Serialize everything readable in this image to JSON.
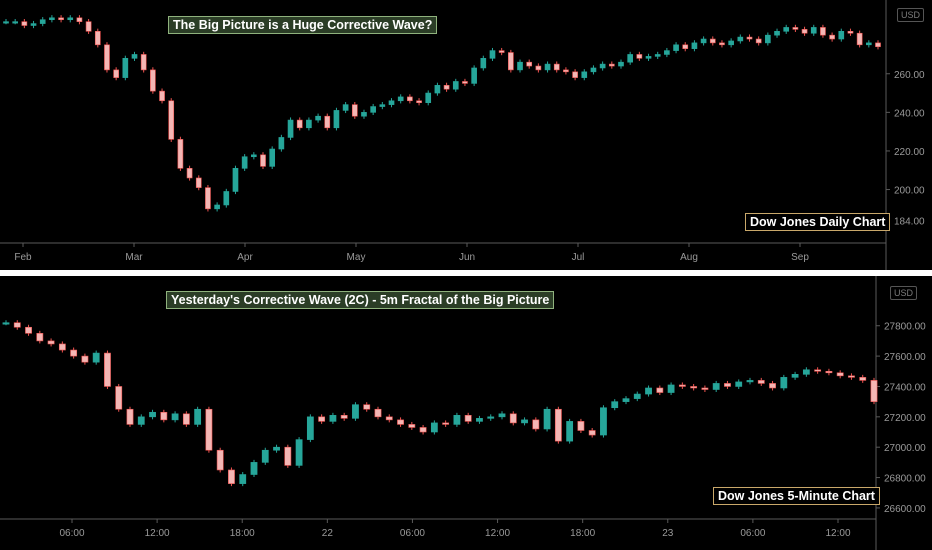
{
  "charts": {
    "top": {
      "banner": "The Big Picture is a Huge Corrective Wave?",
      "label": "Dow Jones Daily Chart",
      "currency": "USD"
    },
    "bottom": {
      "banner": "Yesterday's Corrective Wave (2C) - 5m Fractal of the Big Picture",
      "label": "Dow Jones 5-Minute Chart",
      "currency": "USD"
    }
  },
  "colors": {
    "up": "#26a69a",
    "down": "#ef5350",
    "background": "#000000",
    "axis_text": "#9a9a9a",
    "banner_bg": "#2b3d26",
    "label_border": "#c9a86a"
  },
  "chart_data": [
    {
      "type": "candlestick",
      "title": "Dow Jones Daily Chart",
      "y_unit": "USD",
      "y_ticks": [
        "260.00",
        "240.00",
        "220.00",
        "200.00",
        "184.00"
      ],
      "x_ticks": [
        "Feb",
        "Mar",
        "Apr",
        "May",
        "Jun",
        "Jul",
        "Aug",
        "Sep"
      ],
      "ylim": [
        178,
        292
      ],
      "grid": false,
      "series": [
        {
          "values": [
            287,
            287,
            285,
            286,
            288,
            289,
            288,
            289,
            287,
            282,
            275,
            262,
            258,
            268,
            270,
            262,
            251,
            246,
            226,
            211,
            206,
            201,
            190,
            192,
            199,
            211,
            217,
            218,
            212,
            221,
            227,
            236,
            232,
            236,
            238,
            232,
            241,
            244,
            238,
            240,
            243,
            244,
            246,
            248,
            246,
            245,
            250,
            254,
            252,
            256,
            255,
            263,
            268,
            272,
            271,
            262,
            266,
            264,
            262,
            265,
            262,
            261,
            258,
            261,
            263,
            265,
            264,
            266,
            270,
            268,
            269,
            270,
            272,
            275,
            273,
            276,
            278,
            276,
            275,
            277,
            279,
            278,
            276,
            280,
            282,
            284,
            283,
            281,
            284,
            280,
            278,
            282,
            281,
            275,
            276,
            274
          ]
        }
      ]
    },
    {
      "type": "candlestick",
      "title": "Dow Jones 5-Minute Chart",
      "y_unit": "USD",
      "y_ticks": [
        "27800.00",
        "27600.00",
        "27400.00",
        "27200.00",
        "27000.00",
        "26800.00",
        "26600.00"
      ],
      "x_ticks": [
        "06:00",
        "12:00",
        "18:00",
        "22",
        "06:00",
        "12:00",
        "18:00",
        "23",
        "06:00",
        "12:00"
      ],
      "ylim": [
        26560,
        27930
      ],
      "grid": false,
      "series": [
        {
          "values": [
            27820,
            27790,
            27750,
            27700,
            27680,
            27640,
            27600,
            27560,
            27620,
            27400,
            27250,
            27150,
            27200,
            27230,
            27180,
            27220,
            27150,
            27250,
            26980,
            26850,
            26760,
            26820,
            26900,
            26980,
            27000,
            26880,
            27050,
            27200,
            27170,
            27210,
            27190,
            27280,
            27250,
            27200,
            27180,
            27150,
            27130,
            27100,
            27160,
            27150,
            27210,
            27170,
            27190,
            27200,
            27220,
            27160,
            27180,
            27120,
            27250,
            27040,
            27170,
            27110,
            27080,
            27260,
            27300,
            27320,
            27350,
            27390,
            27360,
            27410,
            27400,
            27390,
            27380,
            27420,
            27400,
            27430,
            27440,
            27420,
            27390,
            27460,
            27480,
            27510,
            27500,
            27490,
            27470,
            27460,
            27440,
            27300
          ]
        }
      ]
    }
  ]
}
